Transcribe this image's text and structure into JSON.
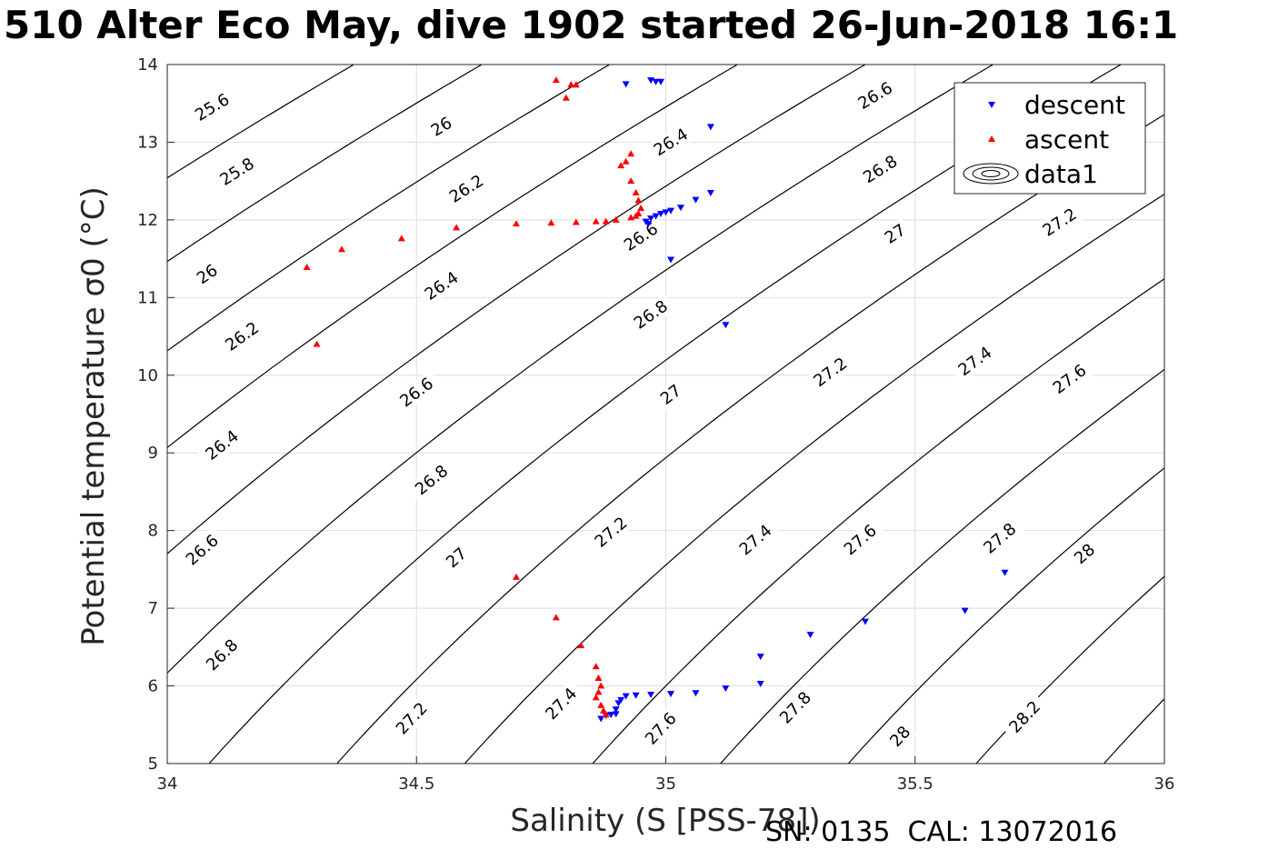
{
  "chart_data": {
    "type": "scatter",
    "title": "510 Alter Eco May, dive 1902 started 26-Jun-2018 16:1",
    "xlabel": "Salinity (S [PSS-78])",
    "ylabel": "Potential temperature σ0 (°C)",
    "xlim": [
      34,
      36
    ],
    "ylim": [
      5,
      14
    ],
    "xticks": [
      34,
      34.5,
      35,
      35.5,
      36
    ],
    "xtick_labels": [
      "34",
      "34.5",
      "35",
      "35.5",
      "36"
    ],
    "yticks": [
      5,
      6,
      7,
      8,
      9,
      10,
      11,
      12,
      13,
      14
    ],
    "ytick_labels": [
      "5",
      "6",
      "7",
      "8",
      "9",
      "10",
      "11",
      "12",
      "13",
      "14"
    ],
    "grid": true,
    "legend_position": "top-right",
    "contours": {
      "levels": [
        25.6,
        25.8,
        26,
        26.2,
        26.4,
        26.6,
        26.8,
        27,
        27.2,
        27.4,
        27.6,
        27.8,
        28,
        28.2
      ],
      "labels": [
        {
          "text": "25.6",
          "x": 34.09,
          "y": 13.45
        },
        {
          "text": "25.8",
          "x": 34.14,
          "y": 12.62
        },
        {
          "text": "26",
          "x": 34.08,
          "y": 11.3
        },
        {
          "text": "26",
          "x": 34.55,
          "y": 13.2
        },
        {
          "text": "26.2",
          "x": 34.15,
          "y": 10.5
        },
        {
          "text": "26.2",
          "x": 34.6,
          "y": 12.4
        },
        {
          "text": "26.4",
          "x": 34.11,
          "y": 9.1
        },
        {
          "text": "26.4",
          "x": 34.55,
          "y": 11.15
        },
        {
          "text": "26.4",
          "x": 35.01,
          "y": 13.0
        },
        {
          "text": "26.6",
          "x": 34.07,
          "y": 7.75
        },
        {
          "text": "26.6",
          "x": 34.5,
          "y": 9.78
        },
        {
          "text": "26.6",
          "x": 34.95,
          "y": 11.78
        },
        {
          "text": "26.6",
          "x": 35.42,
          "y": 13.6
        },
        {
          "text": "26.8",
          "x": 34.11,
          "y": 6.4
        },
        {
          "text": "26.8",
          "x": 34.53,
          "y": 8.65
        },
        {
          "text": "26.8",
          "x": 34.97,
          "y": 10.78
        },
        {
          "text": "26.8",
          "x": 35.43,
          "y": 12.65
        },
        {
          "text": "27",
          "x": 34.58,
          "y": 7.65
        },
        {
          "text": "27",
          "x": 35.01,
          "y": 9.75
        },
        {
          "text": "27",
          "x": 35.46,
          "y": 11.82
        },
        {
          "text": "27.2",
          "x": 34.49,
          "y": 5.58
        },
        {
          "text": "27.2",
          "x": 34.89,
          "y": 7.98
        },
        {
          "text": "27.2",
          "x": 35.33,
          "y": 10.04
        },
        {
          "text": "27.2",
          "x": 35.79,
          "y": 11.97
        },
        {
          "text": "27.4",
          "x": 34.79,
          "y": 5.77
        },
        {
          "text": "27.4",
          "x": 35.18,
          "y": 7.88
        },
        {
          "text": "27.4",
          "x": 35.62,
          "y": 10.18
        },
        {
          "text": "27.6",
          "x": 34.99,
          "y": 5.45
        },
        {
          "text": "27.6",
          "x": 35.39,
          "y": 7.88
        },
        {
          "text": "27.6",
          "x": 35.81,
          "y": 9.95
        },
        {
          "text": "27.8",
          "x": 35.26,
          "y": 5.72
        },
        {
          "text": "27.8",
          "x": 35.67,
          "y": 7.9
        },
        {
          "text": "28",
          "x": 35.47,
          "y": 5.35
        },
        {
          "text": "28",
          "x": 35.84,
          "y": 7.7
        },
        {
          "text": "28.2",
          "x": 35.72,
          "y": 5.6
        }
      ]
    },
    "series": [
      {
        "name": "descent",
        "marker": "triangle-down",
        "color": "#0000ff",
        "x": [
          34.92,
          34.97,
          34.98,
          34.99,
          35.09,
          35.09,
          35.06,
          35.03,
          35.01,
          35.0,
          34.99,
          34.98,
          34.97,
          34.96,
          34.965,
          35.01,
          35.12,
          35.68,
          35.6,
          35.4,
          35.29,
          35.19,
          35.19,
          35.12,
          35.06,
          35.01,
          34.97,
          34.94,
          34.92,
          34.91,
          34.905,
          34.9,
          34.9,
          34.89,
          34.88,
          34.87
        ],
        "y": [
          13.75,
          13.8,
          13.78,
          13.78,
          13.2,
          12.35,
          12.26,
          12.16,
          12.12,
          12.1,
          12.08,
          12.05,
          12.02,
          11.98,
          11.95,
          11.49,
          10.65,
          7.46,
          6.97,
          6.83,
          6.66,
          6.38,
          6.03,
          5.97,
          5.91,
          5.9,
          5.89,
          5.88,
          5.87,
          5.82,
          5.78,
          5.7,
          5.64,
          5.63,
          5.62,
          5.58
        ]
      },
      {
        "name": "ascent",
        "marker": "triangle-up",
        "color": "#ff0000",
        "x": [
          34.78,
          34.81,
          34.82,
          34.8,
          34.93,
          34.92,
          34.91,
          34.93,
          34.94,
          34.945,
          34.95,
          34.945,
          34.94,
          34.93,
          34.9,
          34.88,
          34.86,
          34.82,
          34.77,
          34.7,
          34.58,
          34.47,
          34.35,
          34.28,
          34.3,
          34.7,
          34.78,
          34.83,
          34.86,
          34.865,
          34.87,
          34.865,
          34.86,
          34.87,
          34.875,
          34.88
        ],
        "y": [
          13.8,
          13.74,
          13.74,
          13.57,
          12.85,
          12.75,
          12.7,
          12.5,
          12.35,
          12.25,
          12.15,
          12.08,
          12.05,
          12.03,
          12.0,
          11.98,
          11.98,
          11.97,
          11.96,
          11.95,
          11.9,
          11.76,
          11.62,
          11.39,
          10.4,
          7.4,
          6.88,
          6.52,
          6.25,
          6.1,
          6.0,
          5.92,
          5.85,
          5.75,
          5.68,
          5.63
        ]
      },
      {
        "name": "data1",
        "marker": "contour-lines",
        "color": "#000000",
        "x": [],
        "y": []
      }
    ]
  },
  "footer": "SN: 0135  CAL: 13072016"
}
